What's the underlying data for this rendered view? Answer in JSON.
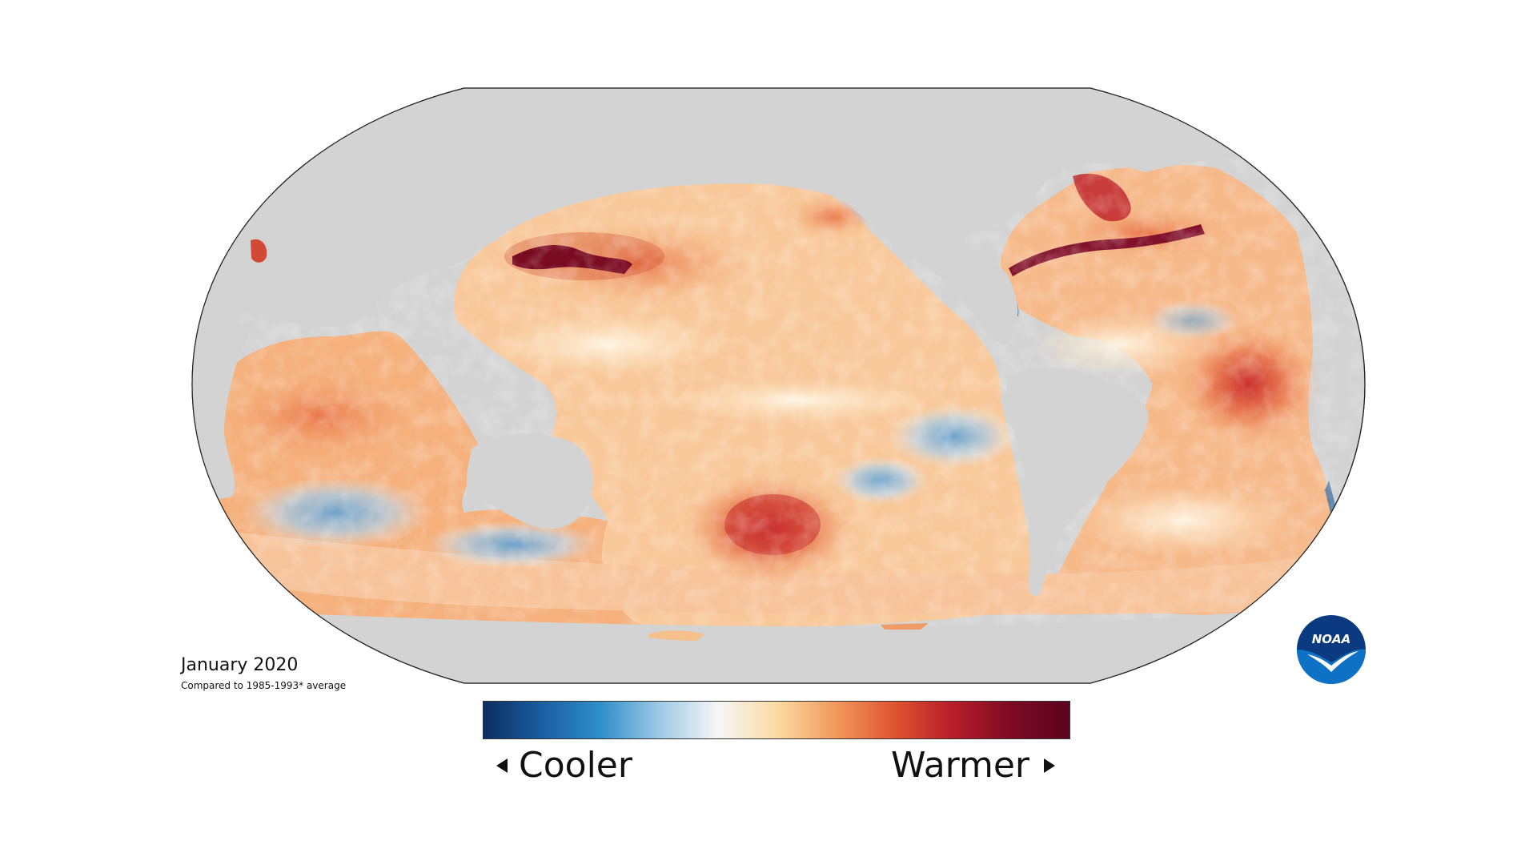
{
  "map": {
    "title": "January 2020",
    "subtitle": "Compared to 1985-1993* average",
    "projection": "Robinson",
    "land_color": "#d3d3d3",
    "ocean_color_scale": [
      "#08306b",
      "#2171b5",
      "#6baed6",
      "#f7f7f7",
      "#fdd49e",
      "#ef6548",
      "#b30000",
      "#67000d"
    ]
  },
  "legend": {
    "cooler_label": "Cooler",
    "warmer_label": "Warmer",
    "colors": [
      "#0b2e62",
      "#1a5fa1",
      "#2f8fca",
      "#9ec9e6",
      "#f6f6f6",
      "#fbdba4",
      "#f29a5d",
      "#df5431",
      "#b81d2a",
      "#7d0a22",
      "#5c0320"
    ]
  },
  "logo": {
    "text": "NOAA",
    "primary_color": "#0b3a80",
    "secondary_color": "#0d72c5"
  }
}
